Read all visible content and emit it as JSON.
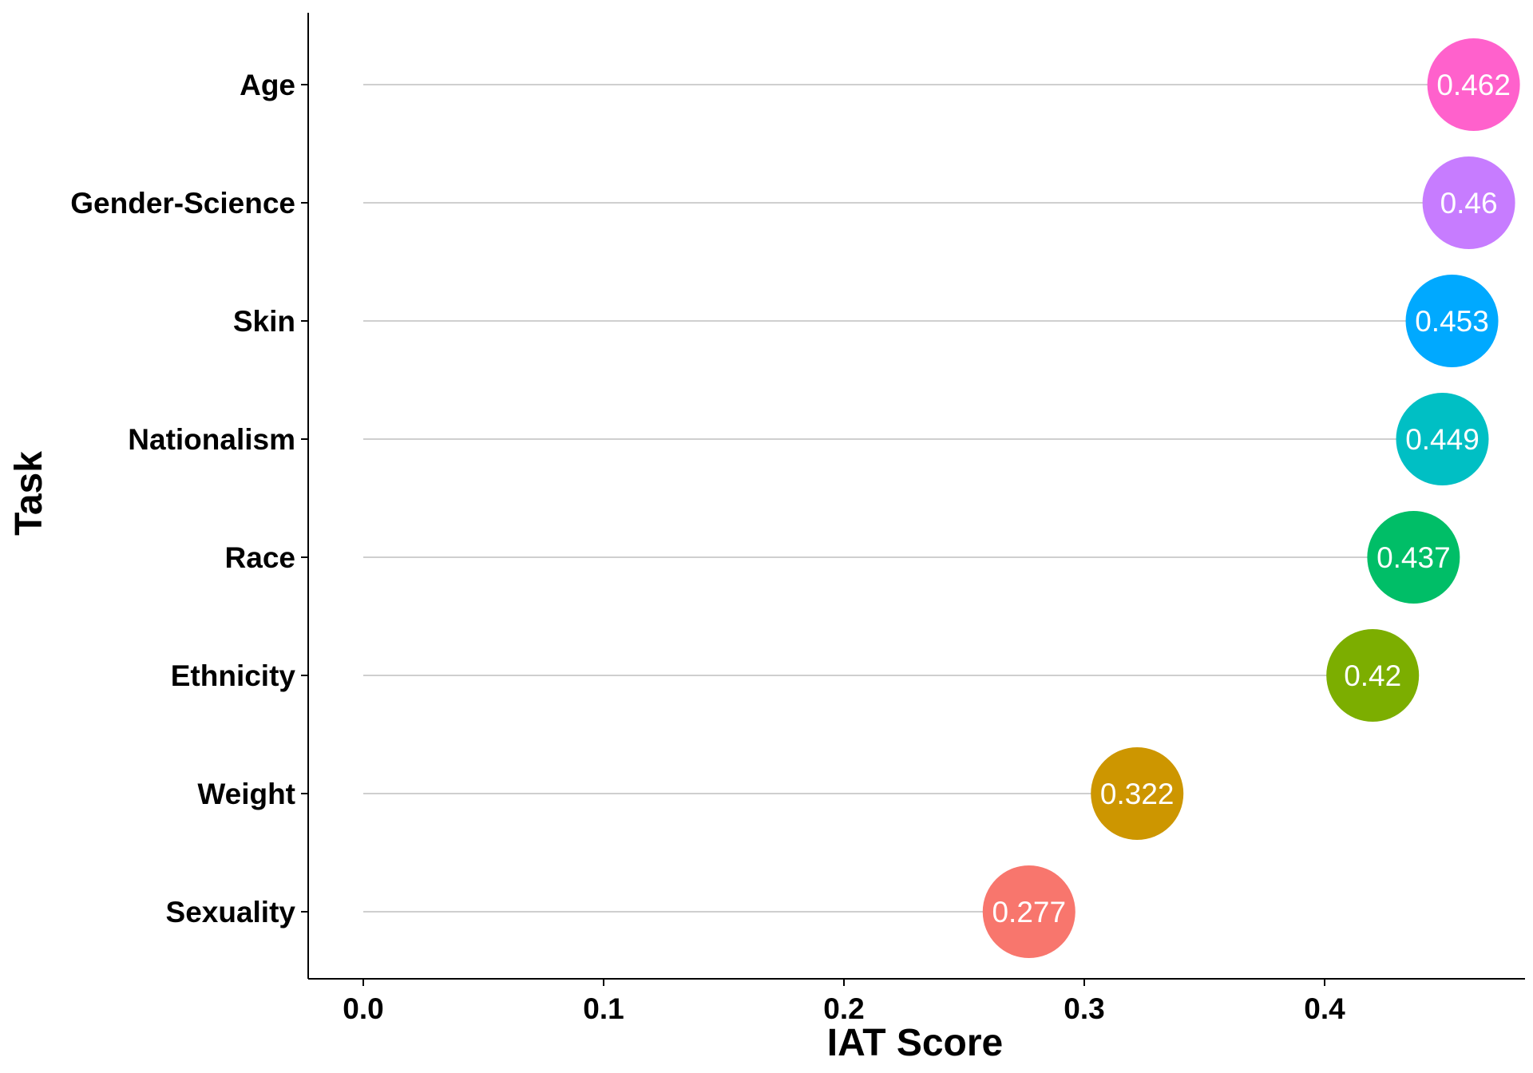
{
  "chart_data": {
    "type": "scatter",
    "xlabel": "IAT Score",
    "ylabel": "Task",
    "xlim": [
      0,
      0.475
    ],
    "x_ticks": [
      "0.0",
      "0.1",
      "0.2",
      "0.3",
      "0.4"
    ],
    "x_tick_values": [
      0,
      0.1,
      0.2,
      0.3,
      0.4
    ],
    "categories": [
      "Age",
      "Gender-Science",
      "Skin",
      "Nationalism",
      "Race",
      "Ethnicity",
      "Weight",
      "Sexuality"
    ],
    "values": [
      0.462,
      0.46,
      0.453,
      0.449,
      0.437,
      0.42,
      0.322,
      0.277
    ],
    "labels": [
      "0.462",
      "0.46",
      "0.453",
      "0.449",
      "0.437",
      "0.42",
      "0.322",
      "0.277"
    ],
    "colors": [
      "#FF61CC",
      "#C77CFF",
      "#00A9FF",
      "#00BFC4",
      "#00BE67",
      "#7CAE00",
      "#CD9600",
      "#F8766D"
    ],
    "grid": false,
    "legend": "none"
  }
}
